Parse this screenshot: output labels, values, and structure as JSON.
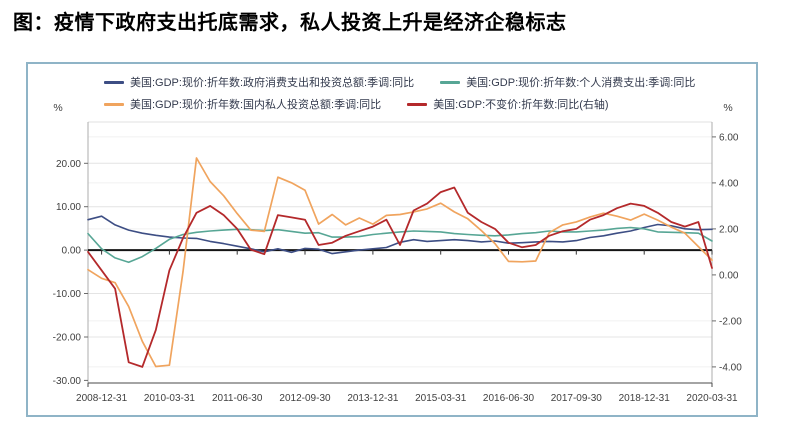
{
  "title": "图：疫情下政府支出托底需求，私人投资上升是经济企稳标志",
  "frame": {
    "border_color": "#8fb4c7",
    "background": "#ffffff"
  },
  "chart_data": {
    "type": "line",
    "legend_position": "top",
    "grid": true,
    "zero_line": true,
    "left_axis": {
      "unit": "%",
      "min": -30.6,
      "max": 29.5,
      "ticks": [
        20,
        10,
        0,
        -10,
        -20,
        -30
      ]
    },
    "right_axis": {
      "unit": "%",
      "min": -4.7,
      "max": 6.65,
      "ticks": [
        6,
        4,
        2,
        0,
        -2,
        -4
      ]
    },
    "x": [
      "2008-09-30",
      "2008-12-31",
      "2009-03-31",
      "2009-06-30",
      "2009-09-30",
      "2009-12-31",
      "2010-03-31",
      "2010-06-30",
      "2010-09-30",
      "2010-12-31",
      "2011-03-31",
      "2011-06-30",
      "2011-09-30",
      "2011-12-31",
      "2012-03-31",
      "2012-06-30",
      "2012-09-30",
      "2012-12-31",
      "2013-03-31",
      "2013-06-30",
      "2013-09-30",
      "2013-12-31",
      "2014-03-31",
      "2014-06-30",
      "2014-09-30",
      "2014-12-31",
      "2015-03-31",
      "2015-06-30",
      "2015-09-30",
      "2015-12-31",
      "2016-03-31",
      "2016-06-30",
      "2016-09-30",
      "2016-12-31",
      "2017-03-31",
      "2017-06-30",
      "2017-09-30",
      "2017-12-31",
      "2018-03-31",
      "2018-06-30",
      "2018-09-30",
      "2018-12-31",
      "2019-03-31",
      "2019-06-30",
      "2019-09-30",
      "2019-12-31",
      "2020-03-31"
    ],
    "x_tick_labels": [
      "2008-12-31",
      "2010-03-31",
      "2011-06-30",
      "2012-09-30",
      "2013-12-31",
      "2015-03-31",
      "2016-06-30",
      "2017-09-30",
      "2018-12-31",
      "2020-03-31"
    ],
    "series": [
      {
        "name": "美国:GDP:现价:折年数:政府消费支出和投资总额:季调:同比",
        "axis": "left",
        "color": "#3d4e84",
        "width": 1.6,
        "values": [
          7.0,
          7.8,
          5.8,
          4.6,
          3.9,
          3.4,
          3.0,
          2.8,
          2.7,
          2.0,
          1.5,
          0.9,
          0.3,
          -0.4,
          0.3,
          -0.5,
          0.4,
          0.2,
          -0.8,
          -0.4,
          0.0,
          0.3,
          0.6,
          1.8,
          2.4,
          2.0,
          2.2,
          2.4,
          2.2,
          1.9,
          2.1,
          1.6,
          1.7,
          1.9,
          2.0,
          1.9,
          2.2,
          2.9,
          3.3,
          3.9,
          4.4,
          5.2,
          5.9,
          5.6,
          4.9,
          4.7,
          4.8
        ]
      },
      {
        "name": "美国:GDP:现价:折年数:个人消费支出:季调:同比",
        "axis": "left",
        "color": "#57a695",
        "width": 1.6,
        "values": [
          3.8,
          0.3,
          -1.8,
          -2.8,
          -1.5,
          0.4,
          2.5,
          3.6,
          4.1,
          4.4,
          4.6,
          4.8,
          4.7,
          4.5,
          4.7,
          4.3,
          3.9,
          4.0,
          3.0,
          3.0,
          3.1,
          3.6,
          3.9,
          4.2,
          4.4,
          4.3,
          4.2,
          3.8,
          3.6,
          3.4,
          3.3,
          3.5,
          3.8,
          4.0,
          4.4,
          4.2,
          4.2,
          4.4,
          4.6,
          5.0,
          5.2,
          4.9,
          4.2,
          4.1,
          4.0,
          3.9,
          2.1
        ]
      },
      {
        "name": "美国:GDP:现价:折年数:国内私人投资总额:季调:同比",
        "axis": "left",
        "color": "#f0a45e",
        "width": 1.7,
        "values": [
          -4.5,
          -6.5,
          -7.5,
          -13.0,
          -21.0,
          -26.8,
          -26.5,
          -5.0,
          21.2,
          15.8,
          12.5,
          8.4,
          4.6,
          4.3,
          16.8,
          15.5,
          13.8,
          6.0,
          8.2,
          5.8,
          7.4,
          6.0,
          8.0,
          8.2,
          8.8,
          9.5,
          10.8,
          8.8,
          7.2,
          4.5,
          1.5,
          -2.6,
          -2.7,
          -2.5,
          4.0,
          5.8,
          6.5,
          7.6,
          8.5,
          7.8,
          6.9,
          8.3,
          6.9,
          5.3,
          3.9,
          0.8,
          -2.3
        ]
      },
      {
        "name": "美国:GDP:不变价:折年数:同比(右轴)",
        "axis": "right",
        "color": "#b4292b",
        "width": 1.8,
        "values": [
          1.0,
          0.2,
          -0.6,
          -3.8,
          -4.0,
          -2.4,
          0.2,
          1.6,
          2.7,
          3.0,
          2.6,
          2.0,
          1.1,
          0.9,
          2.6,
          2.5,
          2.4,
          1.3,
          1.4,
          1.7,
          1.9,
          2.1,
          2.4,
          1.3,
          2.8,
          3.1,
          3.6,
          3.8,
          2.7,
          2.3,
          2.0,
          1.4,
          1.2,
          1.3,
          1.7,
          1.9,
          2.0,
          2.4,
          2.6,
          2.9,
          3.1,
          3.0,
          2.7,
          2.3,
          2.1,
          2.3,
          0.3
        ]
      }
    ]
  }
}
